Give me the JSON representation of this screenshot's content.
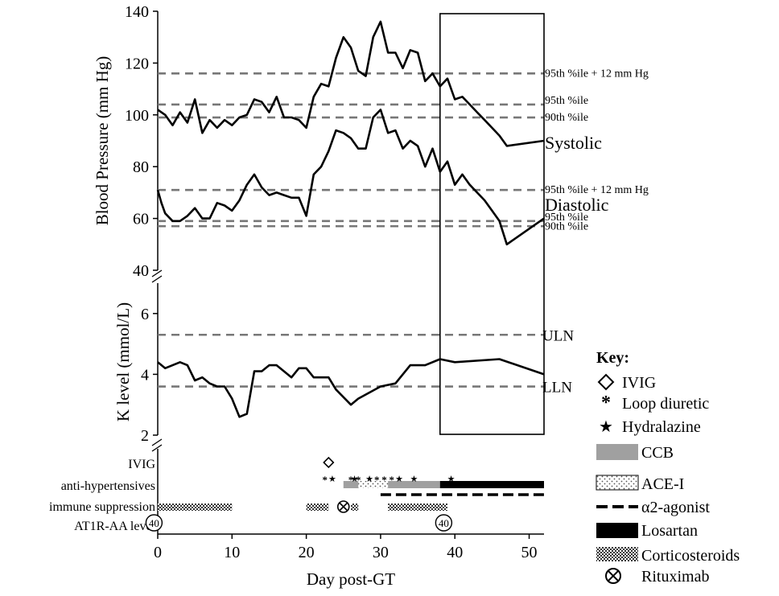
{
  "chart_data": {
    "type": "line",
    "x_range": [
      0,
      52
    ],
    "x_ticks": [
      0,
      10,
      20,
      30,
      40,
      50
    ],
    "xlabel": "Day post-GT",
    "highlight_box_x_range": [
      38,
      52
    ],
    "panels": [
      {
        "name": "blood-pressure",
        "ylabel": "Blood Pressure (mm Hg)",
        "ylim": [
          40,
          140
        ],
        "y_ticks": [
          40,
          60,
          80,
          100,
          120,
          140
        ],
        "series": [
          {
            "name": "Systolic",
            "x": [
              0,
              1,
              2,
              3,
              4,
              5,
              6,
              7,
              8,
              9,
              10,
              11,
              12,
              13,
              14,
              15,
              16,
              17,
              18,
              19,
              20,
              21,
              22,
              23,
              24,
              25,
              26,
              27,
              28,
              29,
              30,
              31,
              32,
              33,
              34,
              35,
              36,
              37,
              38,
              39,
              40,
              41,
              42,
              43,
              44,
              45,
              46,
              47,
              52
            ],
            "values": [
              102,
              100,
              96,
              101,
              97,
              106,
              93,
              98,
              95,
              98,
              96,
              99,
              100,
              106,
              105,
              101,
              107,
              99,
              99,
              98,
              95,
              107,
              112,
              111,
              122,
              130,
              126,
              117,
              115,
              130,
              136,
              124,
              124,
              118,
              125,
              124,
              113,
              116,
              111,
              114,
              106,
              107,
              104,
              101,
              98,
              95,
              92,
              88,
              90
            ]
          },
          {
            "name": "Diastolic",
            "x": [
              0,
              0.5,
              1,
              2,
              3,
              4,
              5,
              6,
              7,
              8,
              9,
              10,
              11,
              12,
              13,
              14,
              15,
              16,
              17,
              18,
              19,
              20,
              21,
              22,
              23,
              24,
              25,
              26,
              27,
              28,
              29,
              30,
              31,
              32,
              33,
              34,
              35,
              36,
              37,
              38,
              39,
              40,
              41,
              42,
              43,
              44,
              45,
              46,
              47,
              52
            ],
            "values": [
              71,
              66,
              62,
              59,
              59,
              61,
              64,
              60,
              60,
              66,
              65,
              63,
              67,
              73,
              77,
              72,
              69,
              70,
              69,
              68,
              68,
              61,
              77,
              80,
              86,
              94,
              93,
              91,
              87,
              87,
              99,
              102,
              93,
              94,
              87,
              90,
              88,
              80,
              87,
              78,
              82,
              73,
              77,
              73,
              70,
              67,
              63,
              59,
              50,
              60
            ]
          }
        ],
        "reference_lines": [
          {
            "label": "95th %ile + 12 mm Hg",
            "y": 116
          },
          {
            "label": "95th %ile",
            "y": 104
          },
          {
            "label": "90th %ile",
            "y": 99
          },
          {
            "label": "95th %ile + 12 mm Hg",
            "y": 71
          },
          {
            "label": "95th %ile",
            "y": 59
          },
          {
            "label": "90th %ile",
            "y": 57
          }
        ]
      },
      {
        "name": "potassium",
        "ylabel": "K level (mmol/L)",
        "ylim": [
          2,
          7
        ],
        "y_ticks": [
          2,
          4,
          6
        ],
        "series": [
          {
            "name": "K level",
            "x": [
              0,
              1,
              3,
              4,
              5,
              6,
              7,
              8,
              9,
              10,
              11,
              12,
              13,
              14,
              15,
              16,
              17,
              18,
              19,
              20,
              21,
              22,
              23,
              24,
              26,
              27,
              30,
              32,
              34,
              36,
              38,
              40,
              46,
              52
            ],
            "values": [
              4.4,
              4.2,
              4.4,
              4.3,
              3.8,
              3.9,
              3.7,
              3.6,
              3.6,
              3.2,
              2.6,
              2.7,
              4.1,
              4.1,
              4.3,
              4.3,
              4.1,
              3.9,
              4.2,
              4.2,
              3.9,
              3.9,
              3.9,
              3.5,
              3.0,
              3.2,
              3.6,
              3.7,
              4.3,
              4.3,
              4.5,
              4.4,
              4.5,
              4.0
            ]
          }
        ],
        "reference_lines": [
          {
            "label": "ULN",
            "y": 5.3
          },
          {
            "label": "LLN",
            "y": 3.6
          }
        ]
      }
    ],
    "treatment_rows": {
      "labels": [
        "IVIG",
        "anti-hypertensives",
        "immune suppression",
        "AT1R-AA level"
      ],
      "ivig_days": [
        23
      ],
      "hydralazine_days": [
        23.5,
        26.5,
        28.5,
        32.5,
        34.5,
        39.5
      ],
      "loop_diuretic_days": [
        22.5,
        26,
        27,
        29.5,
        30.5,
        31.5
      ],
      "ccb": [
        [
          25,
          38
        ]
      ],
      "ace_i": [
        [
          27,
          31
        ]
      ],
      "alpha2_agonist": [
        [
          30,
          52
        ]
      ],
      "losartan": [
        [
          38,
          52
        ]
      ],
      "corticosteroids": [
        [
          0,
          10
        ],
        [
          20,
          23
        ],
        [
          26,
          27
        ],
        [
          31,
          39
        ]
      ],
      "rituximab_days": [
        25
      ],
      "at1r_aa_levels": [
        {
          "day": -0.5,
          "value": "40"
        },
        {
          "day": 38.5,
          "value": "40"
        }
      ]
    },
    "legend": {
      "title": "Key:",
      "items": [
        "IVIG",
        "Loop diuretic",
        "Hydralazine",
        "CCB",
        "ACE-I",
        "α2-agonist",
        "Losartan",
        "Corticosteroids",
        "Rituximab"
      ]
    }
  }
}
